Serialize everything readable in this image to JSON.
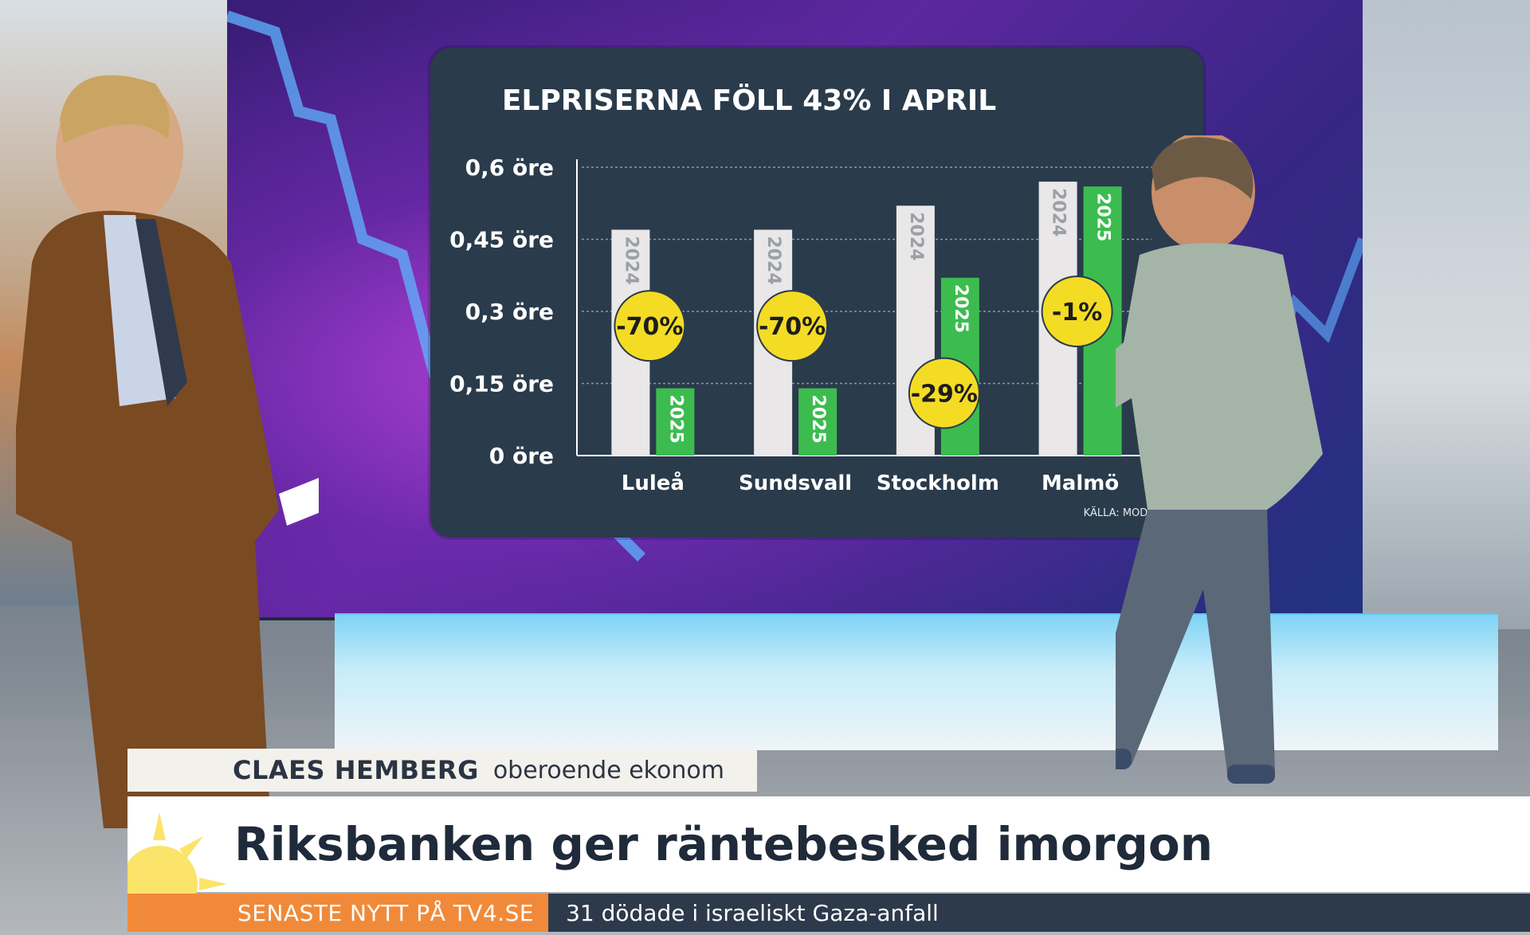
{
  "chart_data": {
    "type": "bar",
    "title": "ELPRISERNA FÖLL 43% I APRIL",
    "source": "KÄLLA: MODITY",
    "categories": [
      "Luleå",
      "Sundsvall",
      "Stockholm",
      "Malmö"
    ],
    "y_ticks": [
      "0 öre",
      "0,15 öre",
      "0,3 öre",
      "0,45 öre",
      "0,6 öre"
    ],
    "ylim": [
      0,
      0.6
    ],
    "series": [
      {
        "name": "2024",
        "values": [
          0.47,
          0.47,
          0.52,
          0.57
        ]
      },
      {
        "name": "2025",
        "values": [
          0.14,
          0.14,
          0.37,
          0.56
        ]
      }
    ],
    "badges": [
      "-70%",
      "-70%",
      "-29%",
      "-1%"
    ],
    "colors": {
      "2024": "#e9e7e8",
      "2025": "#3cbc4f",
      "badge": "#f4dc24",
      "panel": "#2a3b4b"
    }
  },
  "lower_third": {
    "name": "CLAES HEMBERG",
    "role": "oberoende ekonom",
    "headline": "Riksbanken ger räntebesked imorgon",
    "ticker_label": "SENASTE NYTT PÅ TV4.SE",
    "ticker_text": "31 dödade i israeliskt Gaza-anfall"
  }
}
